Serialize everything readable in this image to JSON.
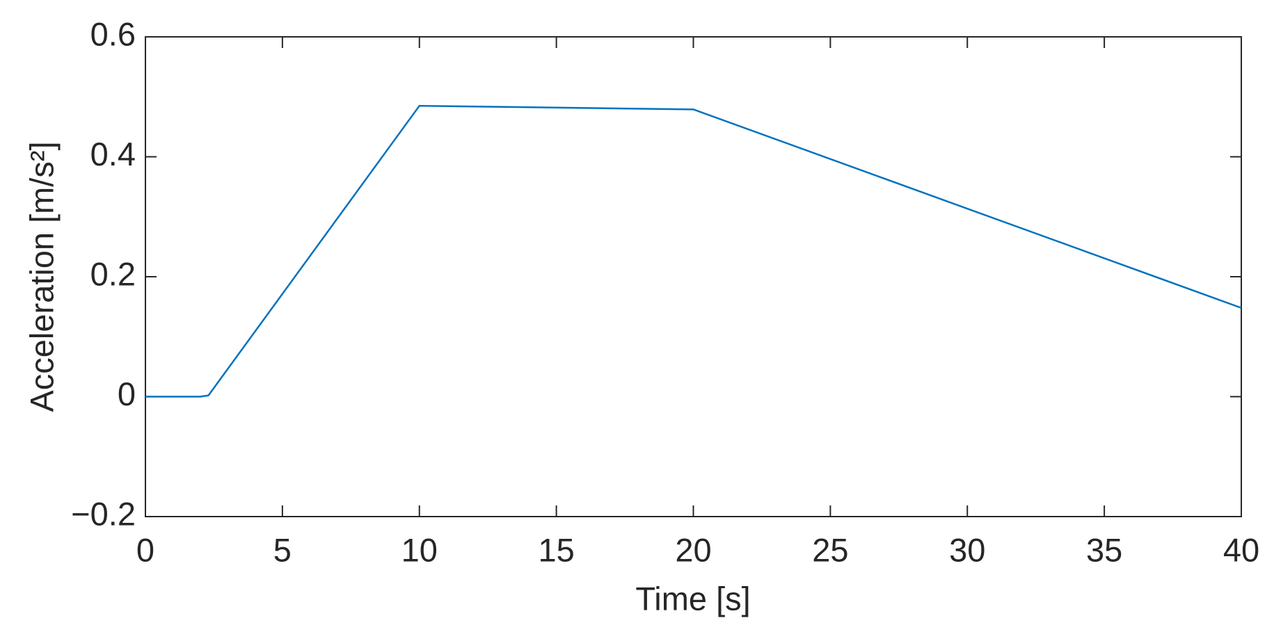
{
  "chart_data": {
    "type": "line",
    "xlabel": "Time [s]",
    "ylabel": "Acceleration [m/s²]",
    "x": [
      0,
      2,
      2.3,
      10,
      20,
      40
    ],
    "series": [
      {
        "color": "#0072bd",
        "values": [
          0,
          0,
          0.002,
          0.485,
          0.479,
          0.148
        ]
      }
    ],
    "xlim": [
      0,
      40
    ],
    "xticks": [
      0,
      5,
      10,
      15,
      20,
      25,
      30,
      35,
      40
    ],
    "ylim": [
      -0.2,
      0.6
    ],
    "yticks": [
      {
        "value": -0.2,
        "label": "−0.2"
      },
      0,
      0.2,
      0.4,
      0.6
    ],
    "grid": false
  }
}
